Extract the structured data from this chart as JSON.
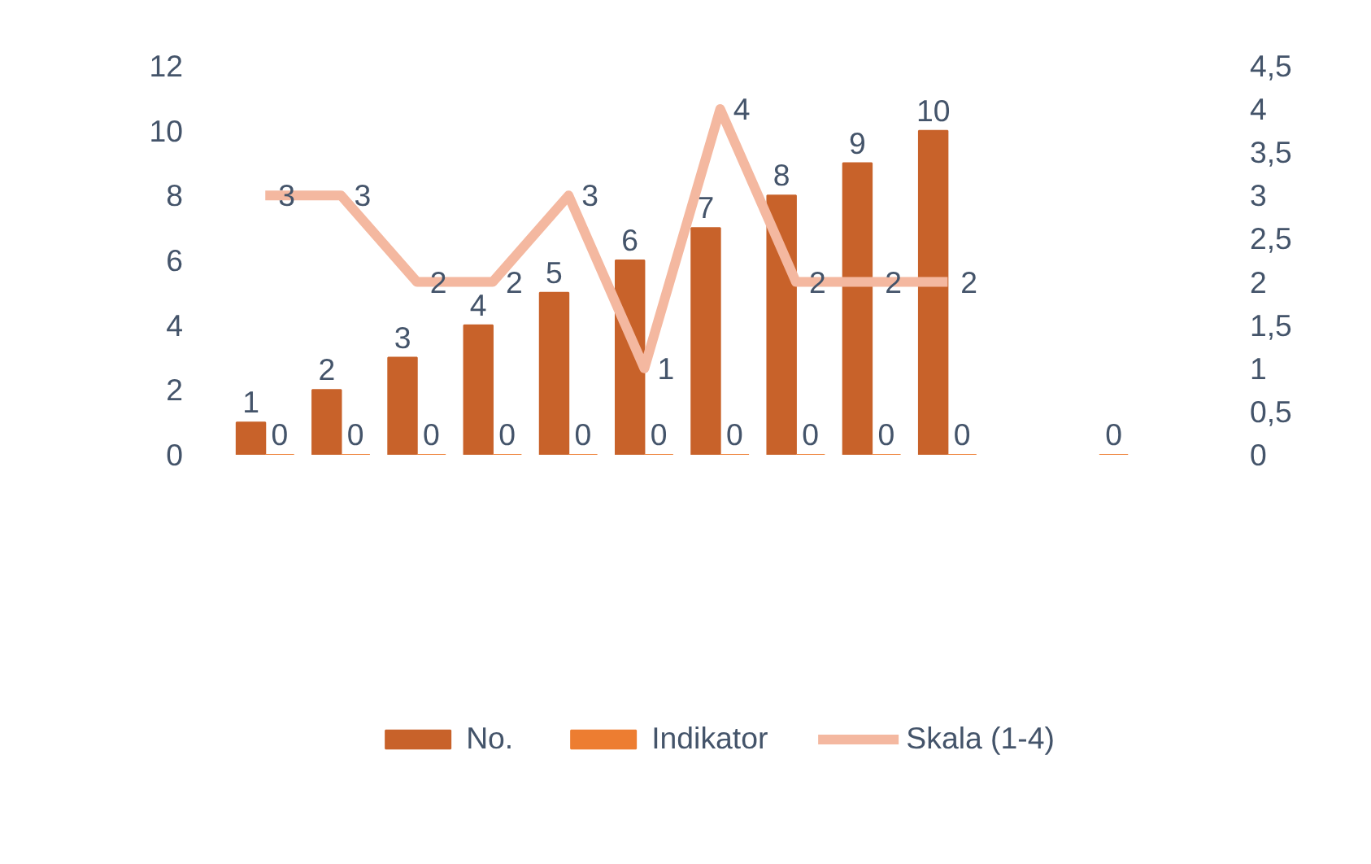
{
  "chart_data": {
    "type": "bar",
    "categories": [
      null,
      null,
      null,
      null,
      null,
      null,
      null,
      null,
      null,
      null,
      null,
      null
    ],
    "series": [
      {
        "name": "No.",
        "color": "#c8622a",
        "values": [
          1,
          2,
          3,
          4,
          5,
          6,
          7,
          8,
          9,
          10,
          null,
          null
        ]
      },
      {
        "name": "Indikator",
        "color": "#ed7d31",
        "values": [
          0,
          0,
          0,
          0,
          0,
          0,
          0,
          0,
          0,
          0,
          null,
          0
        ]
      },
      {
        "name": "Skala (1-4)",
        "type": "line",
        "axis": "y2",
        "color": "#f4b8a0",
        "values": [
          3,
          3,
          2,
          2,
          3,
          1,
          4,
          2,
          2,
          2,
          null,
          null
        ]
      }
    ],
    "ylim": [
      0,
      12
    ],
    "yticks": [
      0,
      2,
      4,
      6,
      8,
      10,
      12
    ],
    "y2lim": [
      0,
      4.5
    ],
    "y2ticks": [
      0,
      {
        "value": 0.5,
        "label": "0,5"
      },
      1,
      {
        "value": 1.5,
        "label": "1,5"
      },
      2,
      {
        "value": 2.5,
        "label": "2,5"
      },
      3,
      {
        "value": 3.5,
        "label": "3,5"
      },
      4,
      {
        "value": 4.5,
        "label": "4,5"
      }
    ],
    "data_labels": true,
    "grid": false,
    "legend": "bottom",
    "marker": "none"
  }
}
